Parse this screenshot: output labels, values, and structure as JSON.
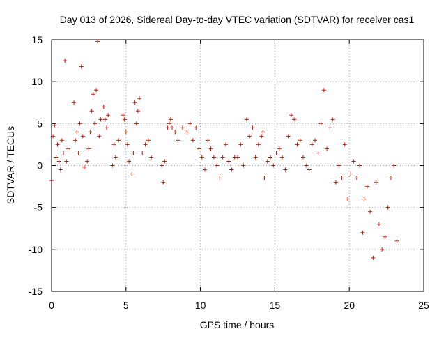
{
  "chart_data": {
    "type": "scatter",
    "title": "Day 013 of 2026, Sidereal Day-to-day VTEC variation (SDTVAR) for receiver cas1",
    "xlabel": "GPS time / hours",
    "ylabel": "SDTVAR / TECUs",
    "xlim": [
      0,
      25
    ],
    "ylim": [
      -15,
      15
    ],
    "xticks": [
      0,
      5,
      10,
      15,
      20,
      25
    ],
    "xtick_labels": [
      "0",
      "5",
      "10",
      "15",
      "20",
      "25"
    ],
    "yticks": [
      -15,
      -10,
      -5,
      0,
      5,
      10,
      15
    ],
    "ytick_labels": [
      "-15",
      "-10",
      "-5",
      "0",
      "5",
      "10",
      "15"
    ],
    "grid": true,
    "marker": "+",
    "series": [
      {
        "name": "SDTVAR",
        "color": "#ff0000",
        "x": [
          0.0,
          0.1,
          0.2,
          0.3,
          0.4,
          0.5,
          0.6,
          0.7,
          0.8,
          0.9,
          1.0,
          1.1,
          1.5,
          1.6,
          1.7,
          1.8,
          1.9,
          2.0,
          2.1,
          2.2,
          2.4,
          2.5,
          2.6,
          2.7,
          2.8,
          2.9,
          3.0,
          3.1,
          3.2,
          3.3,
          3.5,
          3.6,
          3.7,
          3.8,
          4.1,
          4.2,
          4.3,
          4.5,
          4.8,
          4.9,
          5.0,
          5.1,
          5.2,
          5.4,
          5.5,
          5.6,
          5.7,
          5.8,
          5.9,
          6.1,
          6.3,
          6.5,
          6.7,
          7.4,
          7.5,
          7.6,
          7.8,
          7.9,
          8.0,
          8.1,
          8.3,
          8.5,
          8.8,
          9.1,
          9.3,
          9.5,
          9.7,
          9.9,
          10.1,
          10.3,
          10.5,
          10.7,
          10.9,
          11.1,
          11.3,
          11.5,
          11.7,
          11.9,
          12.1,
          12.3,
          12.5,
          12.7,
          12.9,
          13.1,
          13.3,
          13.5,
          13.7,
          13.9,
          14.1,
          14.2,
          14.3,
          14.5,
          14.7,
          14.9,
          15.1,
          15.3,
          15.5,
          15.7,
          15.9,
          16.1,
          16.3,
          16.5,
          16.7,
          16.9,
          17.1,
          17.3,
          17.5,
          17.7,
          17.9,
          18.1,
          18.3,
          18.5,
          18.7,
          18.9,
          19.1,
          19.3,
          19.5,
          19.7,
          19.9,
          20.1,
          20.3,
          20.5,
          20.7,
          20.9,
          21.0,
          21.2,
          21.4,
          21.6,
          21.8,
          22.0,
          22.2,
          22.4,
          22.6,
          22.8,
          23.0,
          23.2
        ],
        "y": [
          -1.8,
          3.5,
          4.8,
          1.0,
          2.5,
          0.5,
          -0.5,
          3.0,
          1.5,
          12.5,
          0.5,
          2.0,
          7.5,
          3.0,
          4.0,
          1.5,
          5.0,
          11.8,
          3.5,
          -0.2,
          0.5,
          2.0,
          4.0,
          6.5,
          8.5,
          5.0,
          9.0,
          14.8,
          3.5,
          5.5,
          7.0,
          5.5,
          4.5,
          6.0,
          0.0,
          2.5,
          1.0,
          3.0,
          6.0,
          5.5,
          4.0,
          2.5,
          0.5,
          -1.0,
          1.5,
          7.5,
          5.0,
          6.5,
          8.0,
          1.5,
          2.5,
          3.0,
          1.0,
          0.0,
          -2.0,
          0.5,
          4.5,
          5.0,
          5.5,
          4.5,
          4.0,
          3.0,
          4.5,
          4.0,
          5.0,
          3.0,
          4.5,
          2.0,
          1.0,
          -0.5,
          3.0,
          2.0,
          1.0,
          0.0,
          -1.5,
          1.0,
          2.5,
          0.5,
          -0.5,
          1.0,
          1.0,
          2.5,
          0.0,
          5.5,
          3.5,
          4.5,
          1.0,
          2.5,
          3.5,
          4.0,
          -1.5,
          0.5,
          1.0,
          0.0,
          1.5,
          2.0,
          1.0,
          -0.5,
          3.5,
          6.0,
          5.5,
          2.5,
          3.0,
          1.0,
          0.0,
          -0.5,
          2.5,
          3.0,
          1.5,
          5.0,
          9.0,
          2.0,
          4.5,
          5.5,
          -2.0,
          0.0,
          -1.5,
          2.5,
          -4.0,
          -1.0,
          0.5,
          -1.5,
          0.0,
          -8.0,
          -4.0,
          -2.5,
          -5.5,
          -11.0,
          -2.0,
          -7.0,
          -10.0,
          -8.5,
          -5.0,
          -1.5,
          0.0,
          -9.0
        ]
      }
    ]
  }
}
